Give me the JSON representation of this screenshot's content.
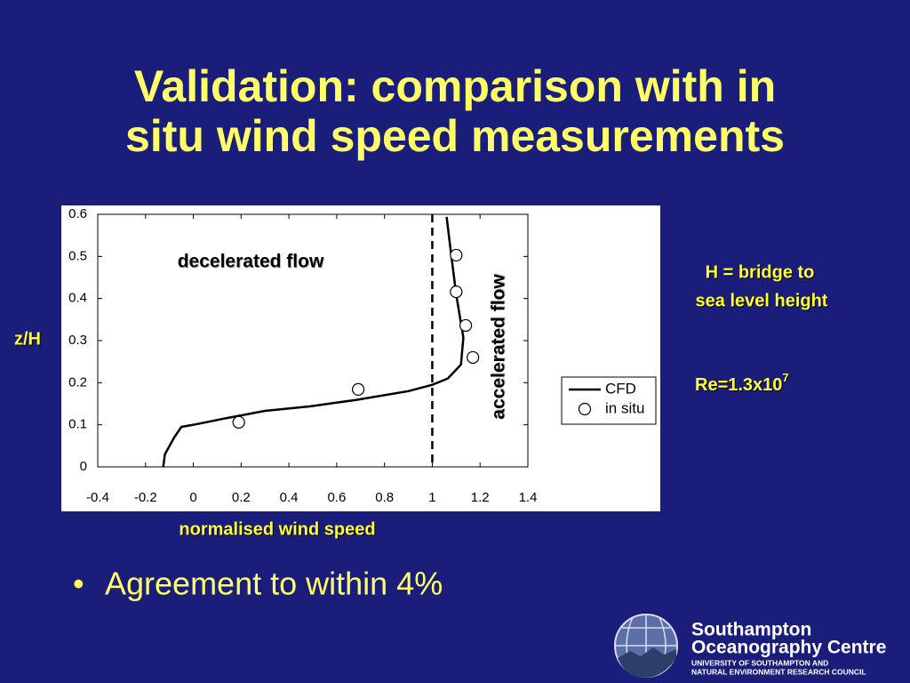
{
  "slide": {
    "title": [
      "Validation: comparison with in",
      "situ wind speed measurements"
    ],
    "bullet": "Agreement to within 4%",
    "note_height": [
      "H = bridge to",
      "sea level height"
    ],
    "note_re": {
      "base": "Re=1.3x10",
      "exponent": "7"
    },
    "logo": {
      "name": [
        "Southampton",
        "Oceanography Centre"
      ],
      "subtitle": [
        "UNIVERSITY OF SOUTHAMPTON AND",
        "NATURAL ENVIRONMENT RESEARCH COUNCIL"
      ]
    }
  },
  "chart_data": {
    "type": "line",
    "x_label": "normalised wind speed",
    "y_label": "z/H",
    "annotations": [
      "decelerated flow",
      "accelerated flow"
    ],
    "xlim": [
      -0.4,
      1.4
    ],
    "xticks": [
      -0.4,
      -0.2,
      0,
      0.2,
      0.4,
      0.6,
      0.8,
      1,
      1.2,
      1.4
    ],
    "ylim": [
      0,
      0.6
    ],
    "yticks": [
      0,
      0.1,
      0.2,
      0.3,
      0.4,
      0.5,
      0.6
    ],
    "vline": 1,
    "grid": false,
    "legend": "right",
    "series": [
      {
        "name": "CFD",
        "color": "#000000",
        "type": "line",
        "x": [
          -0.126,
          -0.119,
          -0.08,
          -0.05,
          0,
          0.14,
          0.3,
          0.49,
          0.68,
          0.9,
          1.0,
          1.065,
          1.12,
          1.13,
          1.1,
          1.08,
          1.06
        ],
        "values": [
          0,
          0.03,
          0.07,
          0.095,
          0.1,
          0.116,
          0.133,
          0.144,
          0.159,
          0.18,
          0.195,
          0.21,
          0.243,
          0.307,
          0.41,
          0.5,
          0.594
        ]
      },
      {
        "name": "in situ",
        "color": "#000000",
        "type": "scatter",
        "x": [
          0.19,
          0.69,
          1.1,
          1.1,
          1.14,
          1.17
        ],
        "values": [
          0.106,
          0.184,
          0.503,
          0.416,
          0.336,
          0.26
        ]
      }
    ]
  }
}
